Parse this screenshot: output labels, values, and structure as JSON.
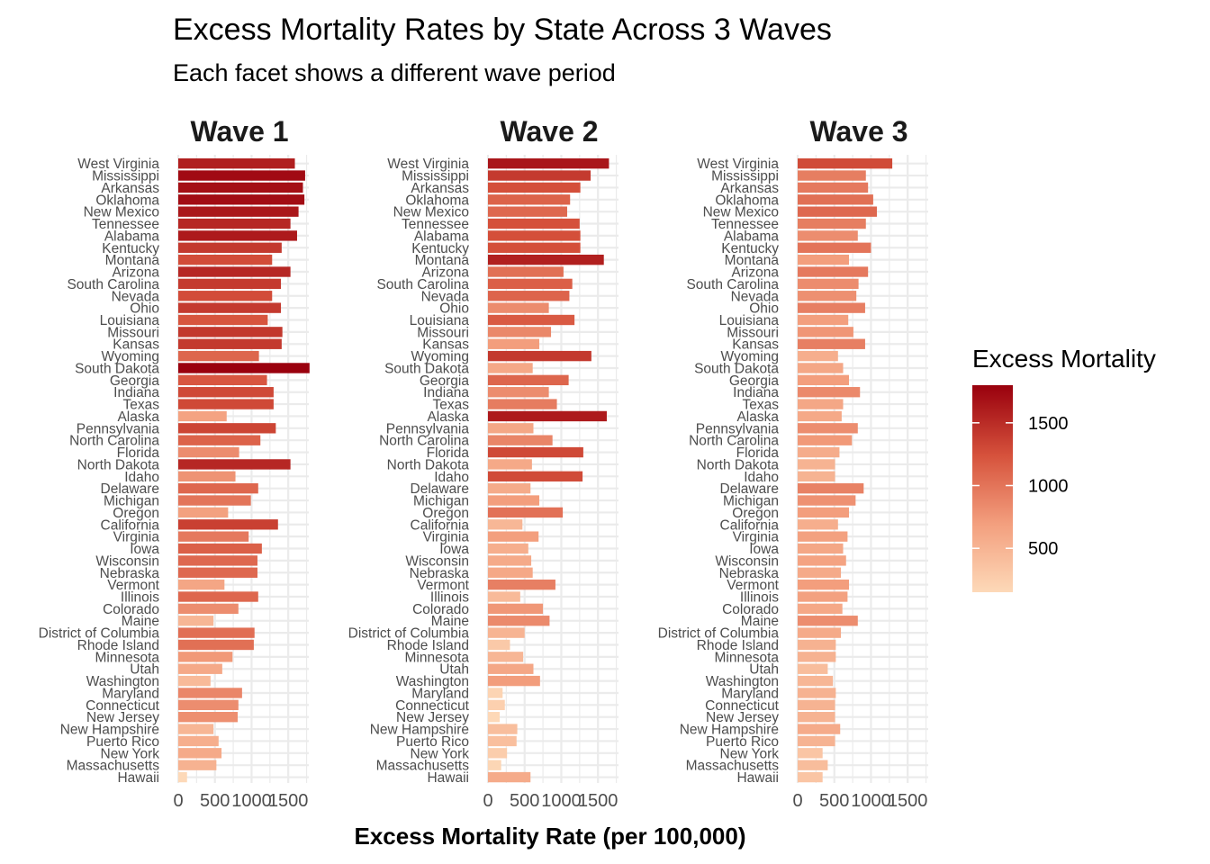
{
  "chart_data": {
    "type": "bar",
    "orientation": "horizontal",
    "title": "Excess Mortality Rates by State Across 3 Waves",
    "subtitle": "Each facet shows a different wave period",
    "xlabel": "Excess Mortality Rate (per 100,000)",
    "ylabel": "",
    "xlim": [
      0,
      1800
    ],
    "x_ticks": [
      0,
      500,
      1000,
      1500
    ],
    "x_tick_labels": [
      "0",
      "500",
      "1000",
      "1500"
    ],
    "grid": true,
    "legend": {
      "title": "Excess Mortality",
      "placement": "right",
      "ticks": [
        500,
        1000,
        1500
      ],
      "tick_labels": [
        "500",
        "1000",
        "1500"
      ],
      "range": [
        150,
        1800
      ],
      "color_low": "#fdd9b8",
      "color_high": "#99000d"
    },
    "categories": [
      "West Virginia",
      "Mississippi",
      "Arkansas",
      "Oklahoma",
      "New Mexico",
      "Tennessee",
      "Alabama",
      "Kentucky",
      "Montana",
      "Arizona",
      "South Carolina",
      "Nevada",
      "Ohio",
      "Louisiana",
      "Missouri",
      "Kansas",
      "Wyoming",
      "South Dakota",
      "Georgia",
      "Indiana",
      "Texas",
      "Alaska",
      "Pennsylvania",
      "North Carolina",
      "Florida",
      "North Dakota",
      "Idaho",
      "Delaware",
      "Michigan",
      "Oregon",
      "California",
      "Virginia",
      "Iowa",
      "Wisconsin",
      "Nebraska",
      "Vermont",
      "Illinois",
      "Colorado",
      "Maine",
      "District of Columbia",
      "Rhode Island",
      "Minnesota",
      "Utah",
      "Washington",
      "Maryland",
      "Connecticut",
      "New Jersey",
      "New Hampshire",
      "Puerto Rico",
      "New York",
      "Massachusetts",
      "Hawaii"
    ],
    "facets": [
      {
        "name": "Wave 1",
        "values": [
          1590,
          1730,
          1700,
          1720,
          1640,
          1530,
          1620,
          1410,
          1280,
          1530,
          1400,
          1280,
          1400,
          1220,
          1420,
          1410,
          1100,
          1790,
          1210,
          1300,
          1300,
          660,
          1330,
          1120,
          830,
          1530,
          780,
          1090,
          990,
          680,
          1360,
          960,
          1140,
          1080,
          1080,
          630,
          1090,
          820,
          480,
          1040,
          1030,
          740,
          600,
          440,
          870,
          820,
          810,
          480,
          550,
          590,
          520,
          120
        ]
      },
      {
        "name": "Wave 2",
        "values": [
          1650,
          1400,
          1260,
          1120,
          1080,
          1250,
          1260,
          1260,
          1580,
          1030,
          1150,
          1110,
          830,
          1180,
          860,
          700,
          1410,
          610,
          1100,
          830,
          940,
          1620,
          620,
          880,
          1300,
          600,
          1290,
          580,
          700,
          1020,
          470,
          690,
          550,
          590,
          610,
          920,
          440,
          750,
          840,
          500,
          300,
          480,
          620,
          710,
          200,
          230,
          160,
          400,
          390,
          260,
          180,
          580
        ]
      },
      {
        "name": "Wave 3",
        "values": [
          1290,
          930,
          960,
          1030,
          1080,
          930,
          820,
          1000,
          700,
          960,
          830,
          800,
          920,
          690,
          760,
          920,
          550,
          620,
          700,
          850,
          620,
          600,
          820,
          740,
          570,
          510,
          510,
          900,
          790,
          700,
          550,
          680,
          620,
          660,
          590,
          700,
          680,
          610,
          820,
          590,
          520,
          520,
          410,
          480,
          520,
          510,
          510,
          580,
          510,
          340,
          410,
          340
        ]
      }
    ]
  }
}
